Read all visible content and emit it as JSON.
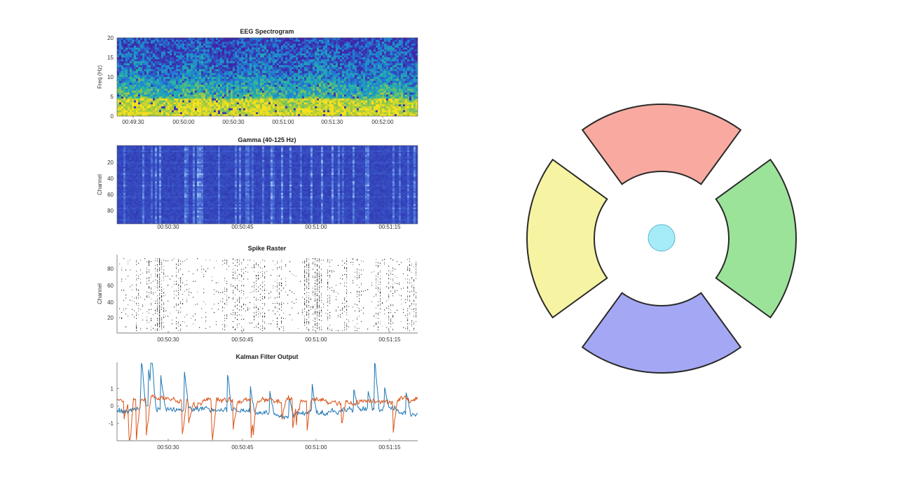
{
  "chart_data": [
    {
      "type": "heatmap",
      "title": "EEG Spectrogram",
      "ylabel": "Freq (Hz)",
      "xlabel": "",
      "ylim": [
        0,
        20
      ],
      "y_ticks": [
        "0",
        "5",
        "10",
        "15",
        "20"
      ],
      "x_ticks": [
        "00:49:30",
        "00:50:00",
        "00:50:30",
        "00:51:00",
        "00:51:30",
        "00:52:00"
      ],
      "colormap": [
        "#3e26a8",
        "#1f7fd6",
        "#24b3a8",
        "#a3c93c",
        "#f9e11e"
      ],
      "description_values": "high power (yellow) at 0-6 Hz, mid (green/cyan) at 6-12 Hz, low (blue) above 12 Hz"
    },
    {
      "type": "heatmap",
      "title": "Gamma (40-125 Hz)",
      "ylabel": "Channel",
      "xlabel": "",
      "y_ticks": [
        "20",
        "40",
        "60",
        "80"
      ],
      "x_ticks": [
        "00:50:30",
        "00:50:45",
        "00:51:00",
        "00:51:15"
      ],
      "colormap": [
        "#2b2ea8",
        "#3a55c8",
        "#5b86e0",
        "#9cc0ef"
      ]
    },
    {
      "type": "scatter",
      "title": "Spike Raster",
      "ylabel": "Channel",
      "xlabel": "",
      "ylim": [
        0,
        96
      ],
      "y_ticks": [
        "20",
        "40",
        "60",
        "80"
      ],
      "x_ticks": [
        "00:50:30",
        "00:50:45",
        "00:51:00",
        "00:51:15"
      ],
      "marker_color": "#111111"
    },
    {
      "type": "line",
      "title": "Kalman Filter Output",
      "ylabel": "",
      "xlabel": "",
      "ylim": [
        -2,
        2.5
      ],
      "y_ticks": [
        "-1",
        "0",
        "1"
      ],
      "x_ticks": [
        "00:50:30",
        "00:50:45",
        "00:51:00",
        "00:51:15"
      ],
      "series": [
        {
          "color": "#1f77b4"
        },
        {
          "color": "#d95319"
        }
      ]
    }
  ],
  "target_display": {
    "sectors": [
      {
        "id": "up",
        "color": "#f9aaa0"
      },
      {
        "id": "right",
        "color": "#9ce39a"
      },
      {
        "id": "down",
        "color": "#a4a8f4"
      },
      {
        "id": "left",
        "color": "#f6f4a2"
      }
    ],
    "cursor_color": "#a6ecf8",
    "outline_color": "#2a2a2a"
  }
}
